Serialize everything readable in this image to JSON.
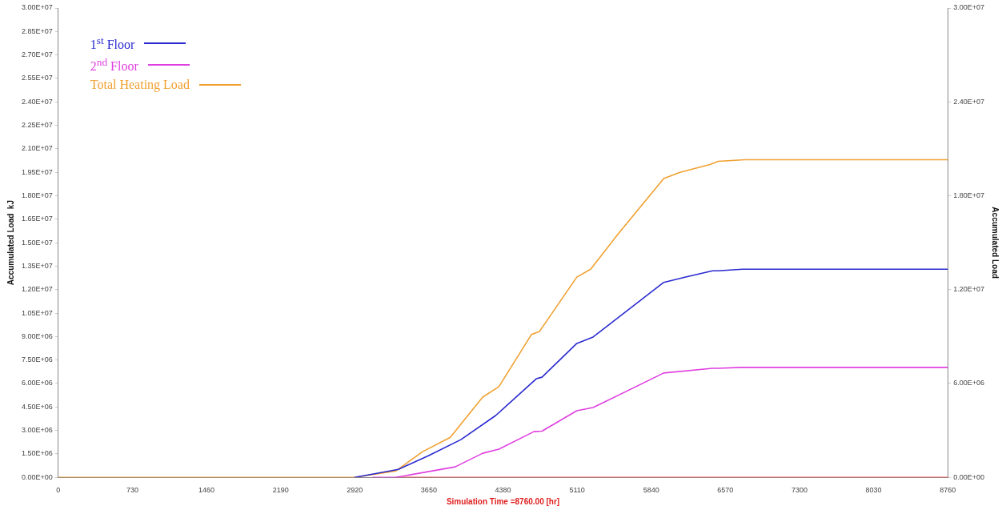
{
  "chart_data": {
    "type": "line",
    "xlabel": "Simulation Time =8760.00 [hr]",
    "ylabel": "Accumulated Load  kJ",
    "y2label": "Accumulated Load",
    "xlim": [
      0,
      8760
    ],
    "xticks": [
      0,
      730,
      1460,
      2190,
      2920,
      3650,
      4380,
      5110,
      5840,
      6570,
      7300,
      8030,
      8760
    ],
    "ylim": [
      0,
      30000000
    ],
    "yticks": [
      {
        "value": 0,
        "label": "0.00E+00"
      },
      {
        "value": 1500000,
        "label": "1.50E+06"
      },
      {
        "value": 3000000,
        "label": "3.00E+06"
      },
      {
        "value": 4500000,
        "label": "4.50E+06"
      },
      {
        "value": 6000000,
        "label": "6.00E+06"
      },
      {
        "value": 7500000,
        "label": "7.50E+06"
      },
      {
        "value": 9000000,
        "label": "9.00E+06"
      },
      {
        "value": 10500000,
        "label": "1.05E+07"
      },
      {
        "value": 12000000,
        "label": "1.20E+07"
      },
      {
        "value": 13500000,
        "label": "1.35E+07"
      },
      {
        "value": 15000000,
        "label": "1.50E+07"
      },
      {
        "value": 16500000,
        "label": "1.65E+07"
      },
      {
        "value": 18000000,
        "label": "1.80E+07"
      },
      {
        "value": 19500000,
        "label": "1.95E+07"
      },
      {
        "value": 21000000,
        "label": "2.10E+07"
      },
      {
        "value": 22500000,
        "label": "2.25E+07"
      },
      {
        "value": 24000000,
        "label": "2.40E+07"
      },
      {
        "value": 25500000,
        "label": "2.55E+07"
      },
      {
        "value": 27000000,
        "label": "2.70E+07"
      },
      {
        "value": 28500000,
        "label": "2.85E+07"
      },
      {
        "value": 30000000,
        "label": "3.00E+07"
      }
    ],
    "y2lim": [
      0,
      30000000
    ],
    "y2ticks": [
      {
        "value": 0,
        "label": "0.00E+00"
      },
      {
        "value": 6000000,
        "label": "6.00E+06"
      },
      {
        "value": 12000000,
        "label": "1.20E+07"
      },
      {
        "value": 18000000,
        "label": "1.80E+07"
      },
      {
        "value": 24000000,
        "label": "2.40E+07"
      },
      {
        "value": 30000000,
        "label": "3.00E+07"
      }
    ],
    "grid": false,
    "legend": "top left",
    "marker": "none",
    "line_style": "solid",
    "series": [
      {
        "name": "1$^{st}$ Floor",
        "color": "#2a2ad0",
        "x": [
          2920,
          3350,
          3645,
          3965,
          4308,
          4708,
          4764,
          5107,
          5267,
          5963,
          6179,
          6443,
          6498,
          6738,
          8760
        ],
        "values": [
          0,
          510000,
          1380000,
          2410000,
          3950000,
          6300000,
          6400000,
          8560000,
          8970000,
          12460000,
          12800000,
          13200000,
          13200000,
          13300000,
          13300000
        ]
      },
      {
        "name": "2$^{nd}$ Floor",
        "color": "#e040e0",
        "x": [
          3100,
          3325,
          3909,
          4180,
          4340,
          4684,
          4764,
          5107,
          5267,
          5963,
          6443,
          6498,
          6738,
          8760
        ],
        "values": [
          0,
          0,
          670000,
          1540000,
          1800000,
          2920000,
          2950000,
          4260000,
          4460000,
          6670000,
          6970000,
          6970000,
          7030000,
          7030000
        ]
      },
      {
        "name": "Total Heating Load",
        "color": "#f0a030",
        "x": [
          0,
          2920,
          3325,
          3589,
          3861,
          4180,
          4340,
          4660,
          4740,
          5107,
          5243,
          5507,
          5963,
          6123,
          6418,
          6498,
          6762,
          7082,
          8760
        ],
        "values": [
          0,
          0,
          410000,
          1640000,
          2560000,
          5130000,
          5800000,
          9130000,
          9330000,
          12800000,
          13300000,
          15500000,
          19100000,
          19500000,
          20000000,
          20200000,
          20300000,
          20300000,
          20300000
        ]
      },
      {
        "color": "#ff5050",
        "x": [
          3325,
          8760
        ],
        "values": [
          0,
          0
        ]
      }
    ]
  }
}
